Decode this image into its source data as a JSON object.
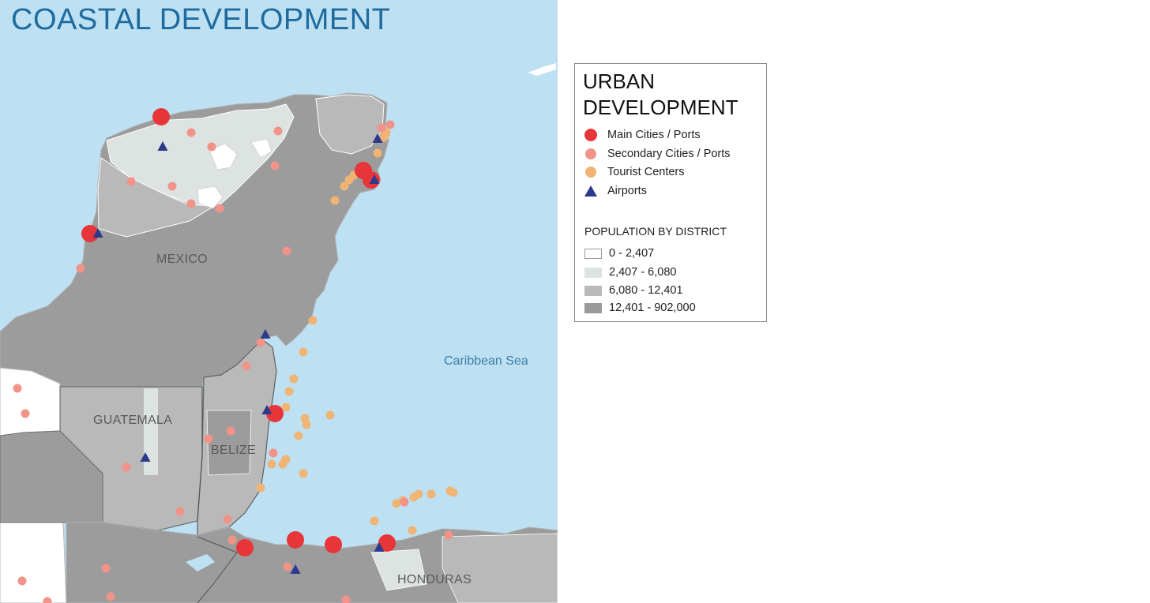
{
  "map": {
    "title": "COASTAL DEVELOPMENT",
    "labels": {
      "mexico": "MEXICO",
      "guatemala": "GUATEMALA",
      "belize": "BELIZE",
      "honduras": "HONDURAS",
      "sea": "Caribbean Sea"
    },
    "colors": {
      "water": "#bde0f3",
      "main_city": "#e8353a",
      "secondary_city": "#f2938a",
      "tourist_center": "#f0b474",
      "airport": "#2b3a8c"
    }
  },
  "legend": {
    "title": "URBAN DEVELOPMENT",
    "symbols": [
      {
        "label": "Main Cities / Ports",
        "icon": "main-city-dot",
        "color": "#e8353a"
      },
      {
        "label": "Secondary Cities / Ports",
        "icon": "secondary-city-dot",
        "color": "#f2938a"
      },
      {
        "label": "Tourist Centers",
        "icon": "tourist-center-dot",
        "color": "#f0b474"
      },
      {
        "label": "Airports",
        "icon": "airport-triangle",
        "color": "#2b3a8c"
      }
    ],
    "population_title": "POPULATION BY DISTRICT",
    "population_classes": [
      {
        "label": "0 - 2,407",
        "color": "#ffffff"
      },
      {
        "label": "2,407 - 6,080",
        "color": "#dde3e0"
      },
      {
        "label": "6,080 - 12,401",
        "color": "#b9b9b9"
      },
      {
        "label": "12,401 - 902,000",
        "color": "#9a9a9a"
      }
    ]
  }
}
